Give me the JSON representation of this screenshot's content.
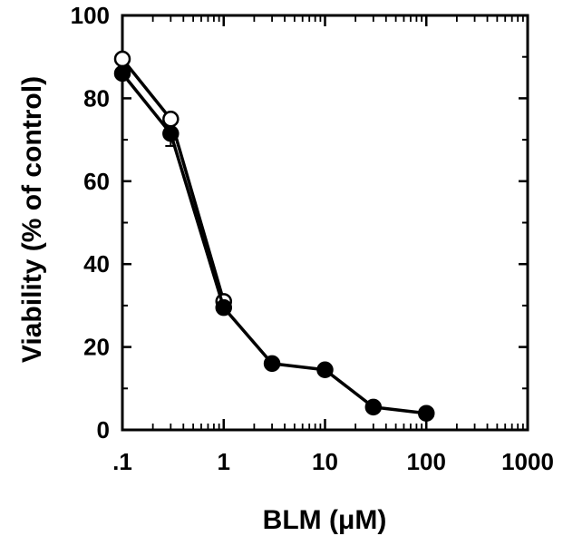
{
  "chart_data": {
    "type": "line",
    "title": "",
    "xlabel": "BLM (μM)",
    "ylabel": "Viability (% of control)",
    "xscale": "log",
    "xlim": [
      0.1,
      1000
    ],
    "ylim": [
      0,
      100
    ],
    "x_ticks": [
      0.1,
      1,
      10,
      100,
      1000
    ],
    "x_tick_labels": [
      ".1",
      "1",
      "10",
      "100",
      "1000"
    ],
    "y_ticks": [
      0,
      20,
      40,
      60,
      80,
      100
    ],
    "y_tick_labels": [
      "0",
      "20",
      "40",
      "60",
      "80",
      "100"
    ],
    "grid": false,
    "legend": "none",
    "series": [
      {
        "marker": "open-circle",
        "color": "#000000",
        "x": [
          0.1,
          0.3,
          1
        ],
        "y": [
          89.5,
          75,
          31
        ]
      },
      {
        "marker": "filled-circle",
        "color": "#000000",
        "x": [
          0.1,
          0.3,
          1,
          3,
          10,
          30,
          100
        ],
        "y": [
          86,
          71.5,
          29.5,
          16,
          14.5,
          5.5,
          4
        ]
      }
    ],
    "error_bars": [
      {
        "x": 0.3,
        "y": 71.5,
        "err": 3
      },
      {
        "x": 0.1,
        "y": 89.5,
        "err": 1
      }
    ]
  }
}
